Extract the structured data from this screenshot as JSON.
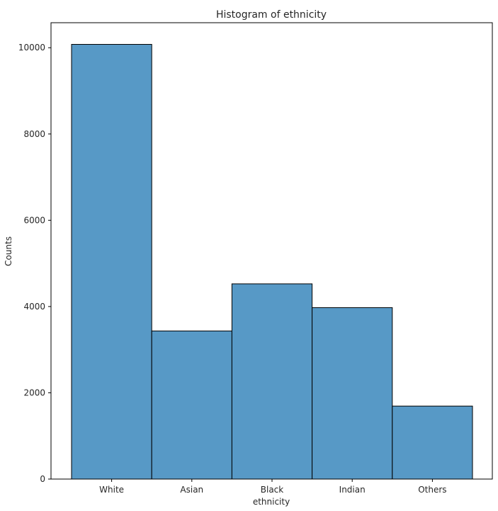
{
  "chart_data": {
    "type": "bar",
    "title": "Histogram of ethnicity",
    "xlabel": "ethnicity",
    "ylabel": "Counts",
    "categories": [
      "White",
      "Asian",
      "Black",
      "Indian",
      "Others"
    ],
    "values": [
      10078,
      3434,
      4526,
      3975,
      1692
    ],
    "ylim": [
      0,
      10580
    ],
    "yticks": [
      0,
      2000,
      4000,
      6000,
      8000,
      10000
    ],
    "ytick_labels": [
      "0",
      "2000",
      "4000",
      "6000",
      "8000",
      "10000"
    ],
    "grid": false,
    "legend": "none",
    "bar_color": "#5799c6",
    "edge_color": "#000000"
  }
}
